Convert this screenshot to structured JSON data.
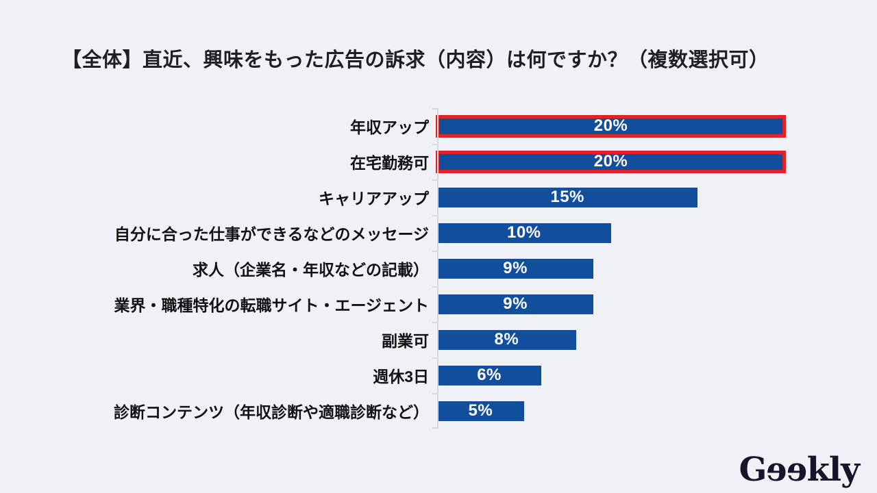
{
  "title": "【全体】直近、興味をもった広告の訴求（内容）は何ですか？（複数選択可）",
  "colors": {
    "background": "#f1f2f7",
    "bar": "#114f9c",
    "highlight_border": "#e32227",
    "axis": "#d7d9e0",
    "title_text": "#1f1f1f",
    "label_text": "#111111",
    "value_text": "#ffffff",
    "logo_text": "#15152b"
  },
  "chart_data": {
    "type": "bar",
    "orientation": "horizontal",
    "title": "【全体】直近、興味をもった広告の訴求（内容）は何ですか？（複数選択可）",
    "categories": [
      "年収アップ",
      "在宅勤務可",
      "キャリアアップ",
      "自分に合った仕事ができるなどのメッセージ",
      "求人（企業名・年収などの記載）",
      "業界・職種特化の転職サイト・エージェント",
      "副業可",
      "週休3日",
      "診断コンテンツ（年収診断や適職診断など）"
    ],
    "values": [
      20,
      20,
      15,
      10,
      9,
      9,
      8,
      6,
      5
    ],
    "value_labels": [
      "20%",
      "20%",
      "15%",
      "10%",
      "9%",
      "9%",
      "8%",
      "6%",
      "5%"
    ],
    "highlighted_indices": [
      0,
      1
    ],
    "xlabel": "",
    "ylabel": "",
    "xlim": [
      0,
      21
    ],
    "grid": false,
    "legend": false,
    "value_axis_labels_visible": false
  },
  "logo": {
    "text": "Geekly",
    "part_g": "G",
    "part_ee": "ee",
    "part_kly": "kly"
  }
}
